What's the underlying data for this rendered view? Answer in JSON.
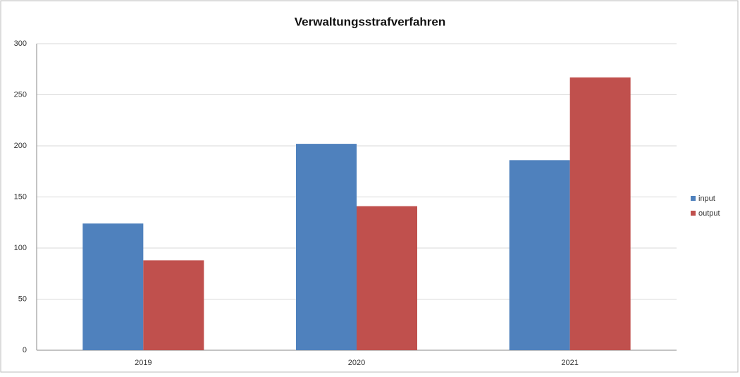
{
  "chart_data": {
    "type": "bar",
    "title": "Verwaltungsstrafverfahren",
    "categories": [
      "2019",
      "2020",
      "2021"
    ],
    "series": [
      {
        "name": "input",
        "color": "#4f81bd",
        "values": [
          124,
          202,
          186
        ]
      },
      {
        "name": "output",
        "color": "#c0504d",
        "values": [
          88,
          141,
          267
        ]
      }
    ],
    "ylim": [
      0,
      300
    ],
    "yticks": [
      0,
      50,
      100,
      150,
      200,
      250,
      300
    ],
    "grid": true,
    "legend": "right"
  }
}
